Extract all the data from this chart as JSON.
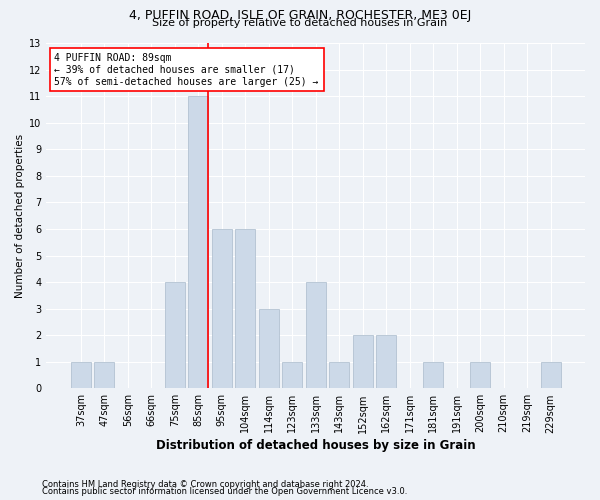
{
  "title1": "4, PUFFIN ROAD, ISLE OF GRAIN, ROCHESTER, ME3 0EJ",
  "title2": "Size of property relative to detached houses in Grain",
  "xlabel": "Distribution of detached houses by size in Grain",
  "ylabel": "Number of detached properties",
  "categories": [
    "37sqm",
    "47sqm",
    "56sqm",
    "66sqm",
    "75sqm",
    "85sqm",
    "95sqm",
    "104sqm",
    "114sqm",
    "123sqm",
    "133sqm",
    "143sqm",
    "152sqm",
    "162sqm",
    "171sqm",
    "181sqm",
    "191sqm",
    "200sqm",
    "210sqm",
    "219sqm",
    "229sqm"
  ],
  "values": [
    1,
    1,
    0,
    0,
    4,
    11,
    6,
    6,
    3,
    1,
    4,
    1,
    2,
    2,
    0,
    1,
    0,
    1,
    0,
    0,
    1
  ],
  "bar_color": "#ccd9e8",
  "bar_edge_color": "#aabbcc",
  "vline_index": 5,
  "annotation_line1": "4 PUFFIN ROAD: 89sqm",
  "annotation_line2": "← 39% of detached houses are smaller (17)",
  "annotation_line3": "57% of semi-detached houses are larger (25) →",
  "annotation_box_color": "white",
  "annotation_box_edge": "red",
  "vline_color": "red",
  "ylim": [
    0,
    13
  ],
  "yticks": [
    0,
    1,
    2,
    3,
    4,
    5,
    6,
    7,
    8,
    9,
    10,
    11,
    12,
    13
  ],
  "footnote1": "Contains HM Land Registry data © Crown copyright and database right 2024.",
  "footnote2": "Contains public sector information licensed under the Open Government Licence v3.0.",
  "bg_color": "#eef2f7",
  "grid_color": "#ffffff",
  "title1_fontsize": 9,
  "title2_fontsize": 8,
  "xlabel_fontsize": 8.5,
  "ylabel_fontsize": 7.5,
  "tick_fontsize": 7,
  "annot_fontsize": 7,
  "footnote_fontsize": 6
}
